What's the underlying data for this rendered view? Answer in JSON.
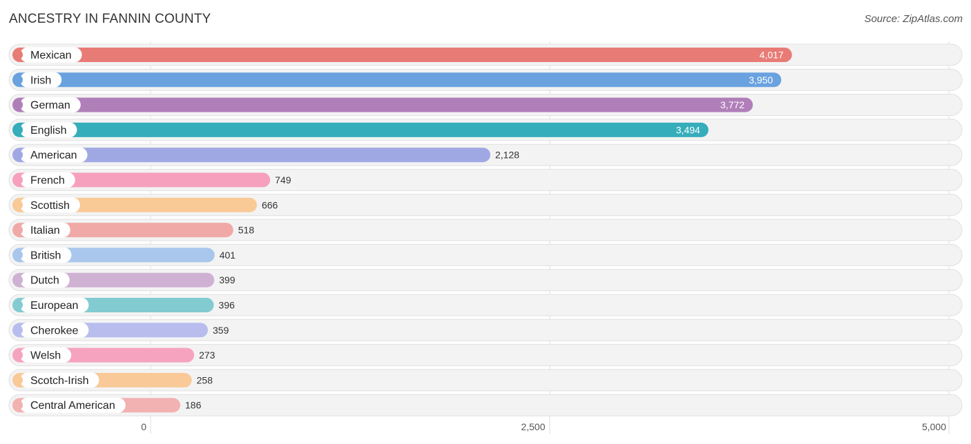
{
  "title": "ANCESTRY IN FANNIN COUNTY",
  "source": "Source: ZipAtlas.com",
  "chart_data": {
    "type": "bar",
    "orientation": "horizontal",
    "title": "ANCESTRY IN FANNIN COUNTY",
    "xlabel": "",
    "ylabel": "",
    "xlim": [
      0,
      5000
    ],
    "grid": true,
    "categories": [
      "Mexican",
      "Irish",
      "German",
      "English",
      "American",
      "French",
      "Scottish",
      "Italian",
      "British",
      "Dutch",
      "European",
      "Cherokee",
      "Welsh",
      "Scotch-Irish",
      "Central American"
    ],
    "values": [
      4017,
      3950,
      3772,
      3494,
      2128,
      749,
      666,
      518,
      401,
      399,
      396,
      359,
      273,
      258,
      186
    ],
    "value_labels": [
      "4,017",
      "3,950",
      "3,772",
      "3,494",
      "2,128",
      "749",
      "666",
      "518",
      "401",
      "399",
      "396",
      "359",
      "273",
      "258",
      "186"
    ],
    "colors": [
      "#e87b75",
      "#6aa2e0",
      "#b07fb9",
      "#35adbb",
      "#a0a8e4",
      "#f6a0bd",
      "#f9c996",
      "#f0a9a7",
      "#a9c7ec",
      "#cfb1d3",
      "#82cbd1",
      "#b8bdee",
      "#f6a3bf",
      "#f9c998",
      "#f1b2b1"
    ],
    "ticks": [
      0,
      2500,
      5000
    ],
    "tick_labels": [
      "0",
      "2,500",
      "5,000"
    ]
  }
}
